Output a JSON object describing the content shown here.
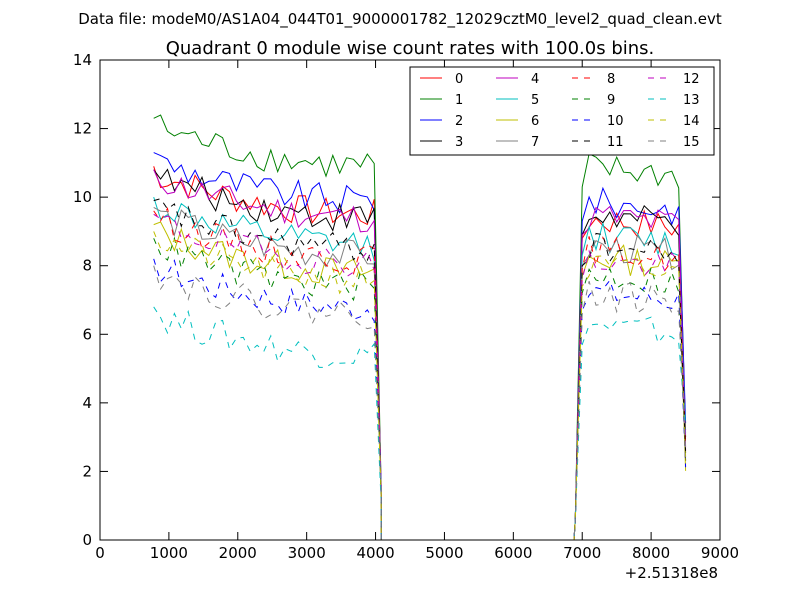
{
  "header": {
    "suptitle": "Data file: modeM0/AS1A04_044T01_9000001782_12029cztM0_level2_quad_clean.evt"
  },
  "chart_data": {
    "type": "line",
    "title": "Quadrant 0 module wise count rates with 100.0s bins.",
    "xlabel": "",
    "ylabel": "",
    "x_offset_label": "+2.51318e8",
    "xlim": [
      0,
      9000
    ],
    "ylim": [
      0,
      14
    ],
    "xticks": [
      0,
      1000,
      2000,
      3000,
      4000,
      5000,
      6000,
      7000,
      8000,
      9000
    ],
    "yticks": [
      0,
      2,
      4,
      6,
      8,
      10,
      12,
      14
    ],
    "legend_position": "top-right",
    "legend_columns": 4,
    "segments": [
      {
        "x_start": 780,
        "x_end": 3980,
        "step": 100
      },
      {
        "x_start": 6900,
        "x_end": 8500,
        "step": 100
      }
    ],
    "gap_values_x": [
      4080,
      4180,
      4280,
      4380,
      4480,
      4580,
      4680,
      4780,
      4880,
      4980,
      5080,
      5180,
      5280,
      5380,
      5480,
      5580,
      5680,
      5780,
      5880,
      5980,
      6080,
      6180,
      6280,
      6380,
      6480,
      6580,
      6680,
      6780,
      6880
    ],
    "series": [
      {
        "name": "0",
        "color": "#ff0000",
        "dash": "solid",
        "level1": 9.9,
        "level2": 9.4
      },
      {
        "name": "1",
        "color": "#008000",
        "dash": "solid",
        "level1": 11.3,
        "level2": 10.9
      },
      {
        "name": "2",
        "color": "#0000ff",
        "dash": "solid",
        "level1": 10.3,
        "level2": 9.9
      },
      {
        "name": "3",
        "color": "#000000",
        "dash": "solid",
        "level1": 9.8,
        "level2": 9.5
      },
      {
        "name": "4",
        "color": "#bf00bf",
        "dash": "solid",
        "level1": 9.8,
        "level2": 9.5
      },
      {
        "name": "5",
        "color": "#00bfbf",
        "dash": "solid",
        "level1": 9.0,
        "level2": 8.9
      },
      {
        "name": "6",
        "color": "#bfbf00",
        "dash": "solid",
        "level1": 8.2,
        "level2": 8.3
      },
      {
        "name": "7",
        "color": "#808080",
        "dash": "solid",
        "level1": 8.7,
        "level2": 8.6
      },
      {
        "name": "8",
        "color": "#ff0000",
        "dash": "dash",
        "level1": 8.6,
        "level2": 8.5
      },
      {
        "name": "9",
        "color": "#008000",
        "dash": "dash",
        "level1": 7.8,
        "level2": 7.8
      },
      {
        "name": "10",
        "color": "#0000ff",
        "dash": "dash",
        "level1": 7.2,
        "level2": 7.3
      },
      {
        "name": "11",
        "color": "#000000",
        "dash": "dash",
        "level1": 8.9,
        "level2": 8.6
      },
      {
        "name": "12",
        "color": "#bf00bf",
        "dash": "dash",
        "level1": 8.5,
        "level2": 8.2
      },
      {
        "name": "13",
        "color": "#00bfbf",
        "dash": "dash",
        "level1": 5.8,
        "level2": 6.3
      },
      {
        "name": "14",
        "color": "#bfbf00",
        "dash": "dash",
        "level1": 8.0,
        "level2": 8.0
      },
      {
        "name": "15",
        "color": "#808080",
        "dash": "dash",
        "level1": 7.0,
        "level2": 7.2
      }
    ]
  }
}
